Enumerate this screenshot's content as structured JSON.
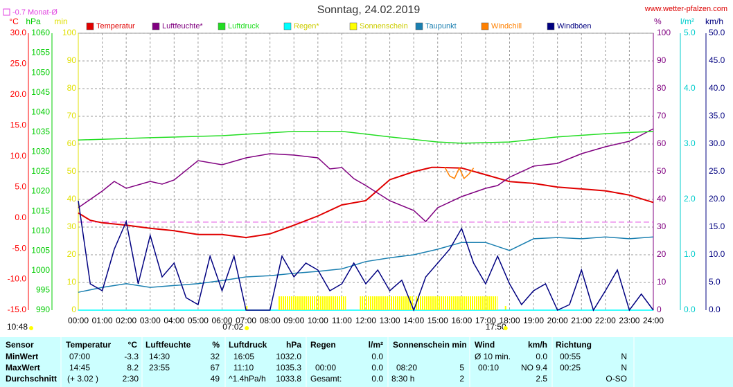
{
  "chart_data": {
    "type": "line",
    "title": "Sonntag, 24.02.2019",
    "source": "www.wetter-pfalzen.com",
    "time": "10:48",
    "reference": {
      "label": "-0.7 Monat-Ø",
      "value": -0.7,
      "axis": "°C",
      "color": "#e040e0"
    },
    "xlim": [
      0,
      24
    ],
    "xticks": [
      {
        "value": 0,
        "label": "00:00"
      },
      {
        "value": 1,
        "label": "01:00"
      },
      {
        "value": 2,
        "label": "02:00"
      },
      {
        "value": 3,
        "label": "03:00"
      },
      {
        "value": 4,
        "label": "04:00"
      },
      {
        "value": 5,
        "label": "05:00"
      },
      {
        "value": 6,
        "label": "06:00"
      },
      {
        "value": 7,
        "label": "07:00"
      },
      {
        "value": 8,
        "label": "08:00"
      },
      {
        "value": 9,
        "label": "09:00"
      },
      {
        "value": 10,
        "label": "10:00"
      },
      {
        "value": 11,
        "label": "11:00"
      },
      {
        "value": 12,
        "label": "12:00"
      },
      {
        "value": 13,
        "label": "13:00"
      },
      {
        "value": 14,
        "label": "14:00"
      },
      {
        "value": 15,
        "label": "15:00"
      },
      {
        "value": 16,
        "label": "16:00"
      },
      {
        "value": 17,
        "label": "17:00"
      },
      {
        "value": 18,
        "label": "18:00"
      },
      {
        "value": 19,
        "label": "19:00"
      },
      {
        "value": 20,
        "label": "20:00"
      },
      {
        "value": 21,
        "label": "21:00"
      },
      {
        "value": 22,
        "label": "22:00"
      },
      {
        "value": 23,
        "label": "23:00"
      },
      {
        "value": 24,
        "label": "24:00"
      }
    ],
    "sunrise": {
      "value": 7.033,
      "label": "07:02"
    },
    "sunset": {
      "value": 17.833,
      "label": "17:50"
    },
    "grid": true,
    "axes": [
      {
        "unit": "°C",
        "side": "left",
        "color": "#ff0000",
        "lim": [
          -15,
          30
        ],
        "ticks": [
          {
            "value": -15,
            "label": "-15.0"
          },
          {
            "value": -10,
            "label": "-10.0"
          },
          {
            "value": -5,
            "label": "-5.0"
          },
          {
            "value": 0,
            "label": "0.0"
          },
          {
            "value": 5,
            "label": "5.0"
          },
          {
            "value": 10,
            "label": "10.0"
          },
          {
            "value": 15,
            "label": "15.0"
          },
          {
            "value": 20,
            "label": "20.0"
          },
          {
            "value": 25,
            "label": "25.0"
          },
          {
            "value": 30,
            "label": "30.0"
          }
        ]
      },
      {
        "unit": "hPa",
        "side": "left",
        "color": "#00cc00",
        "lim": [
          990,
          1060
        ],
        "ticks": [
          990,
          995,
          1000,
          1005,
          1010,
          1015,
          1020,
          1025,
          1030,
          1035,
          1040,
          1045,
          1050,
          1055,
          1060
        ]
      },
      {
        "unit": "min",
        "side": "left",
        "color": "#e0e000",
        "lim": [
          0,
          100
        ],
        "ticks": [
          0,
          10,
          20,
          30,
          40,
          50,
          60,
          70,
          80,
          90,
          100
        ]
      },
      {
        "unit": "%",
        "side": "right",
        "color": "#800080",
        "lim": [
          0,
          100
        ],
        "ticks": [
          0,
          10,
          20,
          30,
          40,
          50,
          60,
          70,
          80,
          90,
          100
        ]
      },
      {
        "unit": "l/m²",
        "side": "right",
        "color": "#00cccc",
        "lim": [
          0,
          5
        ],
        "ticks": [
          {
            "value": 0,
            "label": "0.0"
          },
          {
            "value": 1,
            "label": "1.0"
          },
          {
            "value": 2,
            "label": "2.0"
          },
          {
            "value": 3,
            "label": "3.0"
          },
          {
            "value": 4,
            "label": "4.0"
          },
          {
            "value": 5,
            "label": "5.0"
          }
        ]
      },
      {
        "unit": "km/h",
        "side": "right",
        "color": "#000080",
        "lim": [
          0,
          50
        ],
        "ticks": [
          {
            "value": 0,
            "label": "0.0"
          },
          {
            "value": 5,
            "label": "5.0"
          },
          {
            "value": 10,
            "label": "10.0"
          },
          {
            "value": 15,
            "label": "15.0"
          },
          {
            "value": 20,
            "label": "20.0"
          },
          {
            "value": 25,
            "label": "25.0"
          },
          {
            "value": 30,
            "label": "30.0"
          },
          {
            "value": 35,
            "label": "35.0"
          },
          {
            "value": 40,
            "label": "40.0"
          },
          {
            "value": 45,
            "label": "45.0"
          },
          {
            "value": 50,
            "label": "50.0"
          }
        ]
      }
    ],
    "series": [
      {
        "name": "Temperatur",
        "color": "#e00000",
        "axis": "°C",
        "x": [
          0,
          0.5,
          1,
          2,
          3,
          4,
          5,
          6,
          7,
          8,
          9,
          10,
          11,
          12,
          12.5,
          13,
          14,
          14.75,
          15,
          16,
          17,
          18,
          19,
          20,
          21,
          22,
          23,
          24
        ],
        "values": [
          0.8,
          -0.4,
          -0.8,
          -1.2,
          -1.7,
          -2.1,
          -2.7,
          -2.7,
          -3.2,
          -2.6,
          -1.2,
          0.3,
          2.1,
          2.8,
          4.5,
          6.2,
          7.5,
          8.2,
          8.2,
          8.1,
          7.0,
          5.9,
          5.6,
          5.0,
          4.7,
          4.4,
          3.7,
          2.5
        ]
      },
      {
        "name": "Luftfeuchte*",
        "color": "#800080",
        "axis": "%",
        "x": [
          0,
          1,
          1.5,
          2,
          3,
          3.5,
          4,
          5,
          6,
          7,
          8,
          9,
          10,
          10.5,
          11,
          11.5,
          12,
          13,
          14,
          14.5,
          15,
          16,
          17,
          17.5,
          18,
          19,
          20,
          21,
          22,
          23,
          24
        ],
        "values": [
          37,
          43,
          46.5,
          44,
          46.5,
          45.5,
          47,
          54,
          52.5,
          55,
          56.5,
          56,
          55,
          51,
          51.5,
          47.5,
          45,
          39.5,
          36,
          32,
          37,
          41,
          44,
          45,
          48,
          52,
          53,
          56.5,
          59,
          61,
          65.5
        ]
      },
      {
        "name": "Luftdruck",
        "color": "#22dd22",
        "axis": "hPa",
        "x": [
          0,
          3,
          6,
          9,
          11,
          13,
          15,
          16,
          18,
          20,
          22,
          24
        ],
        "values": [
          1033.0,
          1033.6,
          1034.1,
          1035.2,
          1035.2,
          1033.8,
          1032.5,
          1032.2,
          1032.5,
          1033.8,
          1034.6,
          1035.2
        ]
      },
      {
        "name": "Regen*",
        "color": "#00ffff",
        "axis": "l/m²",
        "x": [
          0,
          24
        ],
        "values": [
          0,
          0
        ]
      },
      {
        "name": "Sonnenschein",
        "color": "#ffff00",
        "axis": "min",
        "x": [
          8.33,
          11.75,
          14.05
        ],
        "x_end": [
          11.17,
          14.0,
          17.5
        ],
        "values": [
          5,
          5,
          5
        ]
      },
      {
        "name": "Taupunkt",
        "color": "#1a7fb0",
        "axis": "°C",
        "x": [
          0,
          1,
          2,
          3,
          4,
          5,
          6,
          7,
          8,
          9,
          10,
          11,
          12,
          13,
          14,
          15,
          16,
          17,
          18,
          19,
          20,
          21,
          22,
          23,
          24
        ],
        "values": [
          -12.1,
          -11.3,
          -10.7,
          -11.3,
          -11,
          -10.7,
          -10.2,
          -9.6,
          -9.4,
          -9.0,
          -8.7,
          -8.3,
          -7.1,
          -6.5,
          -6.0,
          -5.1,
          -4.0,
          -4.0,
          -5.3,
          -3.4,
          -3.2,
          -3.4,
          -3.1,
          -3.4,
          -3.1
        ]
      },
      {
        "name": "Windchill",
        "color": "#ff8000",
        "axis": "°C",
        "x": [
          15.3,
          15.5,
          15.7,
          15.9,
          16.1,
          16.3,
          16.5
        ],
        "values": [
          8.2,
          6.8,
          6.4,
          8.1,
          6.4,
          7.1,
          8.1
        ]
      },
      {
        "name": "Windböen",
        "color": "#000080",
        "axis": "km/h",
        "x": [
          0,
          0.5,
          1,
          1.5,
          2,
          2.5,
          3,
          3.5,
          4,
          4.5,
          5,
          5.5,
          6,
          6.5,
          7,
          7.5,
          8,
          8.5,
          9,
          9.5,
          10,
          10.5,
          11,
          11.5,
          12,
          12.5,
          13,
          13.5,
          14,
          14.5,
          15,
          15.5,
          16,
          16.5,
          17,
          17.5,
          18,
          18.5,
          19,
          19.5,
          20,
          20.5,
          21,
          21.5,
          22,
          22.5,
          23,
          23.5,
          24
        ],
        "values": [
          19.75,
          4.75,
          3.5,
          11,
          16,
          4.75,
          13.5,
          6,
          8.5,
          2.25,
          1,
          9.75,
          3.5,
          9.75,
          0,
          0,
          0,
          9.75,
          6,
          8.5,
          7.25,
          3.5,
          4.75,
          8.5,
          4.75,
          7.25,
          3.5,
          5.4,
          0,
          6,
          8.5,
          11,
          14.75,
          8.5,
          4.75,
          9.75,
          4.75,
          1,
          3.5,
          4.75,
          0,
          1,
          7.25,
          0,
          3.5,
          7.25,
          0,
          2.9,
          0
        ]
      }
    ]
  },
  "table": {
    "header": [
      "Sensor",
      "Temperatur",
      "°C",
      "Luftfeuchte",
      "%",
      "Luftdruck",
      "hPa",
      "Regen",
      "l/m²",
      "Sonnenschein min",
      "Wind",
      "km/h",
      "Richtung"
    ],
    "rows": [
      [
        "MinWert",
        "07:00",
        "-3.3",
        "14:30",
        "32",
        "16:05",
        "1032.0",
        "0.0",
        "Ø 10 min.",
        "0.0",
        "00:55",
        "N"
      ],
      [
        "MaxWert",
        "14:45",
        "8.2",
        "23:55",
        "67",
        "11:10",
        "1035.3",
        "00:00",
        "0.0",
        "08:20",
        "5",
        "00:10",
        "NO 9.4",
        "00:25",
        "N"
      ],
      [
        "Durchschnitt",
        "(+ 3.02 )",
        "2:30",
        "49",
        "^1.4hPa/h",
        "1033.8",
        "Gesamt:",
        "0.0",
        "8:30 h",
        "2",
        "2.5",
        "O-SO"
      ]
    ]
  }
}
